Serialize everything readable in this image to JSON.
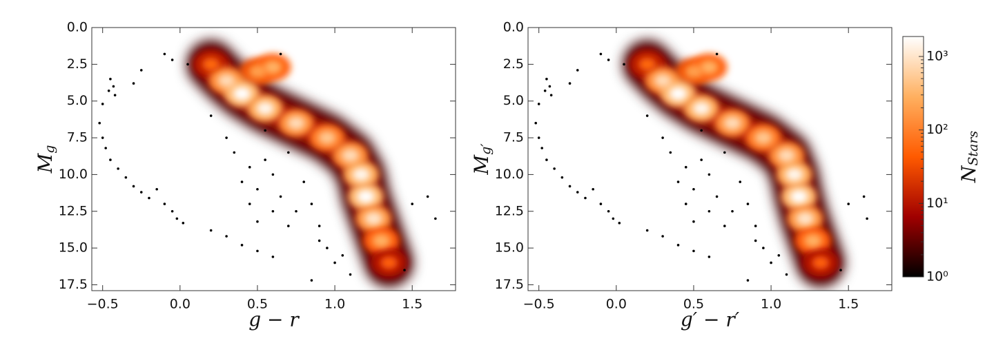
{
  "chart_data": [
    {
      "type": "density",
      "xlabel": "g − r",
      "ylabel": "M",
      "ylabel_sub": "g",
      "xlim": [
        -0.57,
        1.78
      ],
      "ylim": [
        17.9,
        0
      ],
      "xticks": [
        {
          "value": -0.5,
          "label": "−0.5"
        },
        {
          "value": 0,
          "label": "0.0"
        },
        0.5,
        {
          "value": 1,
          "label": "1.0"
        },
        1.5
      ],
      "yticks": [
        {
          "value": 0,
          "label": "0.0"
        },
        2.5,
        {
          "value": 5,
          "label": "5.0"
        },
        7.5,
        {
          "value": 10,
          "label": "10.0"
        },
        12.5,
        {
          "value": 15,
          "label": "15.0"
        },
        17.5
      ],
      "ridge": {
        "x": [
          0.2,
          0.3,
          0.4,
          0.55,
          0.75,
          0.95,
          1.1,
          1.17,
          1.2,
          1.25,
          1.3,
          1.35
        ],
        "y": [
          2.5,
          3.6,
          4.5,
          5.5,
          6.5,
          7.5,
          8.7,
          10,
          11.5,
          13,
          14.5,
          16
        ],
        "counts": [
          60,
          800,
          2000,
          1500,
          800,
          500,
          800,
          1500,
          2000,
          1000,
          300,
          50
        ]
      },
      "clump": {
        "x": [
          0.5,
          0.6
        ],
        "y": [
          3.0,
          2.7
        ],
        "counts": [
          200,
          300
        ]
      },
      "points": {
        "x": [
          -0.45,
          -0.43,
          -0.46,
          -0.42,
          -0.5,
          -0.52,
          -0.5,
          -0.48,
          -0.45,
          -0.4,
          -0.35,
          -0.3,
          -0.25,
          -0.2,
          -0.15,
          -0.1,
          -0.05,
          -0.02,
          0.02,
          -0.1,
          -0.05,
          0.05,
          -0.25,
          -0.3,
          0.2,
          0.3,
          0.4,
          0.5,
          0.6,
          0.2,
          0.3,
          0.45,
          0.5,
          0.6,
          0.7,
          0.8,
          0.9,
          1.0,
          1.1,
          1.5,
          1.6,
          1.65,
          1.45,
          0.85,
          0.65,
          0.35,
          0.4,
          0.55,
          0.6,
          0.65,
          0.7,
          0.75,
          0.85,
          0.9,
          0.95,
          1.05,
          0.5,
          0.55,
          0.45
        ],
        "y": [
          3.5,
          4.0,
          4.3,
          4.6,
          5.2,
          6.5,
          7.5,
          8.2,
          9.0,
          9.6,
          10.2,
          10.8,
          11.2,
          11.6,
          11.0,
          12.0,
          12.5,
          13.0,
          13.3,
          1.8,
          2.2,
          2.5,
          2.9,
          3.8,
          13.8,
          14.2,
          14.8,
          15.2,
          15.6,
          6.0,
          7.5,
          9.5,
          11,
          12.5,
          13.5,
          10.5,
          14.5,
          16.0,
          16.8,
          12.0,
          11.5,
          13.0,
          16.5,
          17.2,
          1.8,
          8.5,
          10.5,
          9,
          10,
          11.5,
          8.5,
          12.5,
          12,
          13.5,
          15,
          15.5,
          13.2,
          7,
          12
        ]
      }
    },
    {
      "type": "density",
      "xlabel": "g′ − r′",
      "ylabel": "M",
      "ylabel_sub": "g′",
      "xlim": [
        -0.57,
        1.78
      ],
      "ylim": [
        17.9,
        0
      ],
      "xticks": [
        {
          "value": -0.5,
          "label": "−0.5"
        },
        {
          "value": 0,
          "label": "0.0"
        },
        0.5,
        {
          "value": 1,
          "label": "1.0"
        },
        1.5
      ],
      "yticks": [
        {
          "value": 0,
          "label": "0.0"
        },
        2.5,
        {
          "value": 5,
          "label": "5.0"
        },
        7.5,
        {
          "value": 10,
          "label": "10.0"
        },
        12.5,
        {
          "value": 15,
          "label": "15.0"
        },
        17.5
      ],
      "ridge": {
        "x": [
          0.2,
          0.3,
          0.4,
          0.55,
          0.75,
          0.95,
          1.1,
          1.15,
          1.18,
          1.22,
          1.27,
          1.32
        ],
        "y": [
          2.5,
          3.6,
          4.5,
          5.5,
          6.5,
          7.5,
          8.7,
          10,
          11.5,
          13,
          14.5,
          16
        ],
        "counts": [
          60,
          800,
          2000,
          1500,
          800,
          500,
          800,
          1500,
          2000,
          1000,
          300,
          50
        ]
      },
      "clump": {
        "x": [
          0.5,
          0.6
        ],
        "y": [
          3.0,
          2.7
        ],
        "counts": [
          200,
          300
        ]
      },
      "points": {
        "x": [
          -0.45,
          -0.43,
          -0.46,
          -0.42,
          -0.5,
          -0.52,
          -0.5,
          -0.48,
          -0.45,
          -0.4,
          -0.35,
          -0.3,
          -0.25,
          -0.2,
          -0.15,
          -0.1,
          -0.05,
          -0.02,
          0.02,
          -0.1,
          -0.05,
          0.05,
          -0.25,
          -0.3,
          0.2,
          0.3,
          0.4,
          0.5,
          0.6,
          0.2,
          0.3,
          0.45,
          0.5,
          0.6,
          0.7,
          0.8,
          0.9,
          1.0,
          1.1,
          1.5,
          1.6,
          1.62,
          1.45,
          0.85,
          0.65,
          0.35,
          0.4,
          0.55,
          0.6,
          0.65,
          0.7,
          0.75,
          0.85,
          0.9,
          0.95,
          1.05,
          0.5,
          0.55,
          0.45
        ],
        "y": [
          3.5,
          4.0,
          4.3,
          4.6,
          5.2,
          6.5,
          7.5,
          8.2,
          9.0,
          9.6,
          10.2,
          10.8,
          11.2,
          11.6,
          11.0,
          12.0,
          12.5,
          13.0,
          13.3,
          1.8,
          2.2,
          2.5,
          2.9,
          3.8,
          13.8,
          14.2,
          14.8,
          15.2,
          15.6,
          6.0,
          7.5,
          9.5,
          11,
          12.5,
          13.5,
          10.5,
          14.5,
          16.0,
          16.8,
          12.0,
          11.5,
          13.0,
          16.5,
          17.2,
          1.8,
          8.5,
          10.5,
          9,
          10,
          11.5,
          8.5,
          12.5,
          12,
          13.5,
          15,
          15.5,
          13.2,
          7,
          12
        ]
      }
    }
  ],
  "colorbar": {
    "label": "N",
    "label_sub": "Stars",
    "log": true,
    "clim": [
      1,
      1870
    ],
    "ticks": [
      {
        "value": 1,
        "label": "10⁰"
      },
      {
        "value": 10,
        "label": "10¹"
      },
      {
        "value": 100,
        "label": "10²"
      },
      {
        "value": 1000,
        "label": "10³"
      }
    ],
    "colormap": [
      "#000000",
      "#a00000",
      "#ff5a00",
      "#ffb060",
      "#ffffff"
    ]
  }
}
